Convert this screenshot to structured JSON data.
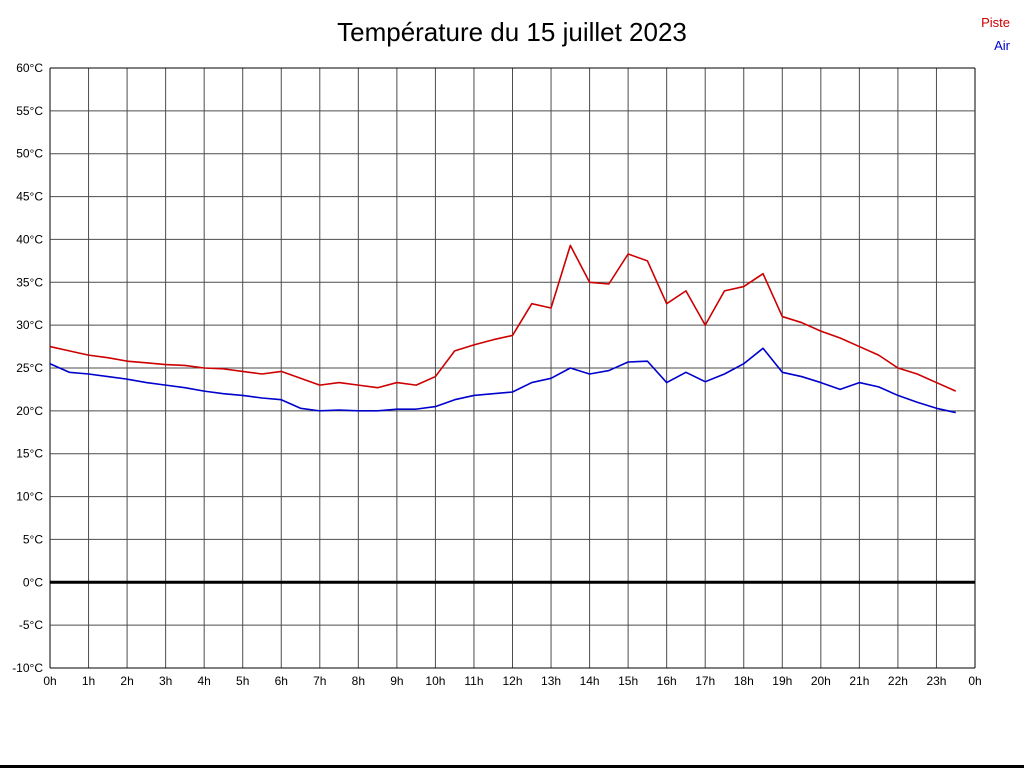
{
  "chart_data": {
    "type": "line",
    "title": "Température du 15 juillet 2023",
    "xlabel": "",
    "ylabel": "",
    "ylim": [
      -10,
      60
    ],
    "xlim_hours": [
      0,
      24
    ],
    "ytick_step": 5,
    "grid": "on",
    "grid_color": "#4d4d4d",
    "frame_color": "#000000",
    "zero_line_color": "#000000",
    "legend_position": "top-right",
    "ytick_labels": [
      "60°C",
      "55°C",
      "50°C",
      "45°C",
      "40°C",
      "35°C",
      "30°C",
      "25°C",
      "20°C",
      "15°C",
      "10°C",
      "5°C",
      "0°C",
      "-5°C",
      "-10°C"
    ],
    "xtick_labels": [
      "0h",
      "1h",
      "2h",
      "3h",
      "4h",
      "5h",
      "6h",
      "7h",
      "8h",
      "9h",
      "10h",
      "11h",
      "12h",
      "13h",
      "14h",
      "15h",
      "16h",
      "17h",
      "18h",
      "19h",
      "20h",
      "21h",
      "22h",
      "23h",
      "0h"
    ],
    "x": [
      0,
      0.5,
      1,
      1.5,
      2,
      2.5,
      3,
      3.5,
      4,
      4.5,
      5,
      5.5,
      6,
      6.5,
      7,
      7.5,
      8,
      8.5,
      9,
      9.5,
      10,
      10.5,
      11,
      11.5,
      12,
      12.5,
      13,
      13.5,
      14,
      14.5,
      15,
      15.5,
      16,
      16.5,
      17,
      17.5,
      18,
      18.5,
      19,
      19.5,
      20,
      20.5,
      21,
      21.5,
      22,
      22.5,
      23,
      23.5
    ],
    "series": [
      {
        "name": "Piste",
        "color": "#cc0000",
        "values": [
          27.5,
          27.0,
          26.5,
          26.2,
          25.8,
          25.6,
          25.4,
          25.3,
          25.0,
          24.9,
          24.6,
          24.3,
          24.6,
          23.8,
          23.0,
          23.3,
          23.0,
          22.7,
          23.3,
          23.0,
          24.0,
          27.0,
          27.7,
          28.3,
          28.8,
          32.5,
          32.0,
          39.3,
          35.0,
          34.8,
          38.3,
          37.5,
          32.5,
          34.0,
          30.0,
          34.0,
          34.5,
          36.0,
          31.0,
          30.3,
          29.3,
          28.5,
          27.5,
          26.5,
          25.0,
          24.3,
          23.3,
          22.3
        ]
      },
      {
        "name": "Air",
        "color": "#0000cc",
        "values": [
          25.5,
          24.5,
          24.3,
          24.0,
          23.7,
          23.3,
          23.0,
          22.7,
          22.3,
          22.0,
          21.8,
          21.5,
          21.3,
          20.3,
          20.0,
          20.1,
          20.0,
          20.0,
          20.2,
          20.2,
          20.5,
          21.3,
          21.8,
          22.0,
          22.2,
          23.3,
          23.8,
          25.0,
          24.3,
          24.7,
          25.7,
          25.8,
          23.3,
          24.5,
          23.4,
          24.3,
          25.5,
          27.3,
          24.5,
          24.0,
          23.3,
          22.5,
          23.3,
          22.8,
          21.8,
          21.0,
          20.3,
          19.8
        ]
      }
    ]
  }
}
